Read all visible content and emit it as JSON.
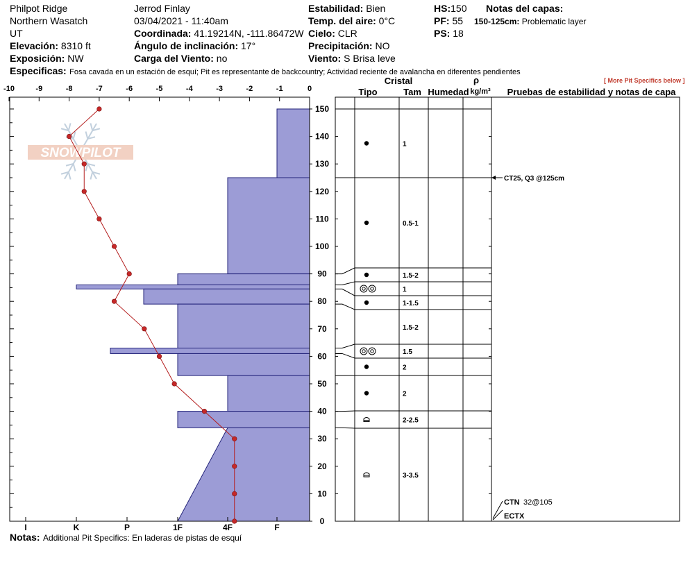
{
  "header": {
    "location": "Philpot Ridge",
    "range": "Northern Wasatch",
    "state": "UT",
    "elevation_label": "Elevación:",
    "elevation_value": "8310 ft",
    "exposure_label": "Exposición:",
    "exposure_value": "NW",
    "observer": "Jerrod Finlay",
    "datetime": "03/04/2021 - 11:40am",
    "coord_label": "Coordinada:",
    "coord_value": "41.19214N, -111.86472W",
    "slope_label": "Ángulo de inclinación:",
    "slope_value": "17°",
    "wind_load_label": "Carga del Viento:",
    "wind_load_value": "no",
    "stability_label": "Estabilidad:",
    "stability_value": "Bien",
    "air_temp_label": "Temp. del aire:",
    "air_temp_value": "0°C",
    "sky_label": "Cielo:",
    "sky_value": "CLR",
    "precip_label": "Precipitación:",
    "precip_value": "NO",
    "wind_label": "Viento:",
    "wind_value": "S Brisa leve",
    "hs_label": "HS:",
    "hs_value": "150",
    "pf_label": "PF:",
    "pf_value": "55",
    "ps_label": "PS:",
    "ps_value": "18",
    "layer_notes_label": "Notas del capas:",
    "layer_note_range": "150-125cm:",
    "layer_note_text": "Problematic layer",
    "specifics_label": "Especificas:",
    "specifics_text": "Fosa cavada en un estación de esquí; Pit es representante de backcountry; Actividad reciente de avalancha en diferentes pendientes",
    "more_link": "[ More Pit Specifics below ]",
    "notes_label": "Notas:",
    "notes_text": "Additional Pit Specifics: En laderas de pistas de esquí"
  },
  "logo_text": "SNOWPILOT",
  "table_headers": {
    "cristal": "Cristal",
    "tipo": "Tipo",
    "tam": "Tam",
    "humedad": "Humedad",
    "rho": "ρ",
    "density_unit": "kg/m³",
    "tests": "Pruebas de estabilidad y notas de capa"
  },
  "chart_data": {
    "type": "snow-profile",
    "temperature_axis": {
      "ticks": [
        "-10",
        "-9",
        "-8",
        "-7",
        "-6",
        "-5",
        "-4",
        "-3",
        "-2",
        "-1",
        "0"
      ],
      "range": [
        -10,
        0
      ]
    },
    "height_axis": {
      "ticks": [
        "0",
        "10",
        "20",
        "30",
        "40",
        "50",
        "60",
        "70",
        "80",
        "90",
        "100",
        "110",
        "120",
        "130",
        "140",
        "150"
      ],
      "range": [
        0,
        150
      ]
    },
    "hardness_axis": {
      "ticks": [
        "I",
        "K",
        "P",
        "1F",
        "4F",
        "F"
      ]
    },
    "temperature_profile": [
      {
        "h": 150,
        "t": -7.0
      },
      {
        "h": 140,
        "t": -8.0
      },
      {
        "h": 130,
        "t": -7.5
      },
      {
        "h": 120,
        "t": -7.5
      },
      {
        "h": 110,
        "t": -7.0
      },
      {
        "h": 100,
        "t": -6.5
      },
      {
        "h": 90,
        "t": -6.0
      },
      {
        "h": 80,
        "t": -6.5
      },
      {
        "h": 70,
        "t": -5.5
      },
      {
        "h": 60,
        "t": -5.0
      },
      {
        "h": 50,
        "t": -4.5
      },
      {
        "h": 40,
        "t": -3.5
      },
      {
        "h": 30,
        "t": -2.5
      },
      {
        "h": 20,
        "t": -2.5
      },
      {
        "h": 10,
        "t": -2.5
      },
      {
        "h": 0,
        "t": -2.5
      }
    ],
    "hardness_profile": [
      {
        "top": 150,
        "bottom": 125,
        "hardness": "F"
      },
      {
        "top": 125,
        "bottom": 90,
        "hardness": "4F"
      },
      {
        "top": 90,
        "bottom": 86,
        "hardness": "1F"
      },
      {
        "top": 86,
        "bottom": 84.5,
        "hardness": "K"
      },
      {
        "top": 84.5,
        "bottom": 79,
        "hardness": "1F+"
      },
      {
        "top": 79,
        "bottom": 63,
        "hardness": "1F"
      },
      {
        "top": 63,
        "bottom": 61,
        "hardness": "K+"
      },
      {
        "top": 61,
        "bottom": 53,
        "hardness": "1F"
      },
      {
        "top": 53,
        "bottom": 40,
        "hardness": "4F"
      },
      {
        "top": 40,
        "bottom": 34,
        "hardness": "1F"
      },
      {
        "top": 34,
        "bottom": 0,
        "hardness": "4F to 1F"
      }
    ],
    "layers": [
      {
        "top": 150,
        "bottom": 125,
        "symbol": "dot",
        "size": "1"
      },
      {
        "top": 125,
        "bottom": 92,
        "symbol": "dot",
        "size": "0.5-1"
      },
      {
        "top": 92,
        "bottom": 87,
        "symbol": "dot",
        "size": "1.5-2"
      },
      {
        "top": 87,
        "bottom": 82,
        "symbol": "ring",
        "size": "1"
      },
      {
        "top": 82,
        "bottom": 77,
        "symbol": "dot",
        "size": "1-1.5"
      },
      {
        "top": 77,
        "bottom": 64,
        "symbol": "",
        "size": "1.5-2"
      },
      {
        "top": 64,
        "bottom": 59,
        "symbol": "ring",
        "size": "1.5"
      },
      {
        "top": 59,
        "bottom": 53,
        "symbol": "dot",
        "size": "2"
      },
      {
        "top": 53,
        "bottom": 40,
        "symbol": "dot",
        "size": "2"
      },
      {
        "top": 40,
        "bottom": 34,
        "symbol": "facet",
        "size": "2-2.5"
      },
      {
        "top": 34,
        "bottom": 0,
        "symbol": "facet",
        "size": "3-3.5"
      }
    ],
    "tests": [
      {
        "height": 125,
        "text": "CT25, Q3 @125cm"
      },
      {
        "height": 5,
        "label": "CTN",
        "text": "32@105"
      },
      {
        "height": 0,
        "label": "ECTX",
        "text": ""
      }
    ]
  }
}
